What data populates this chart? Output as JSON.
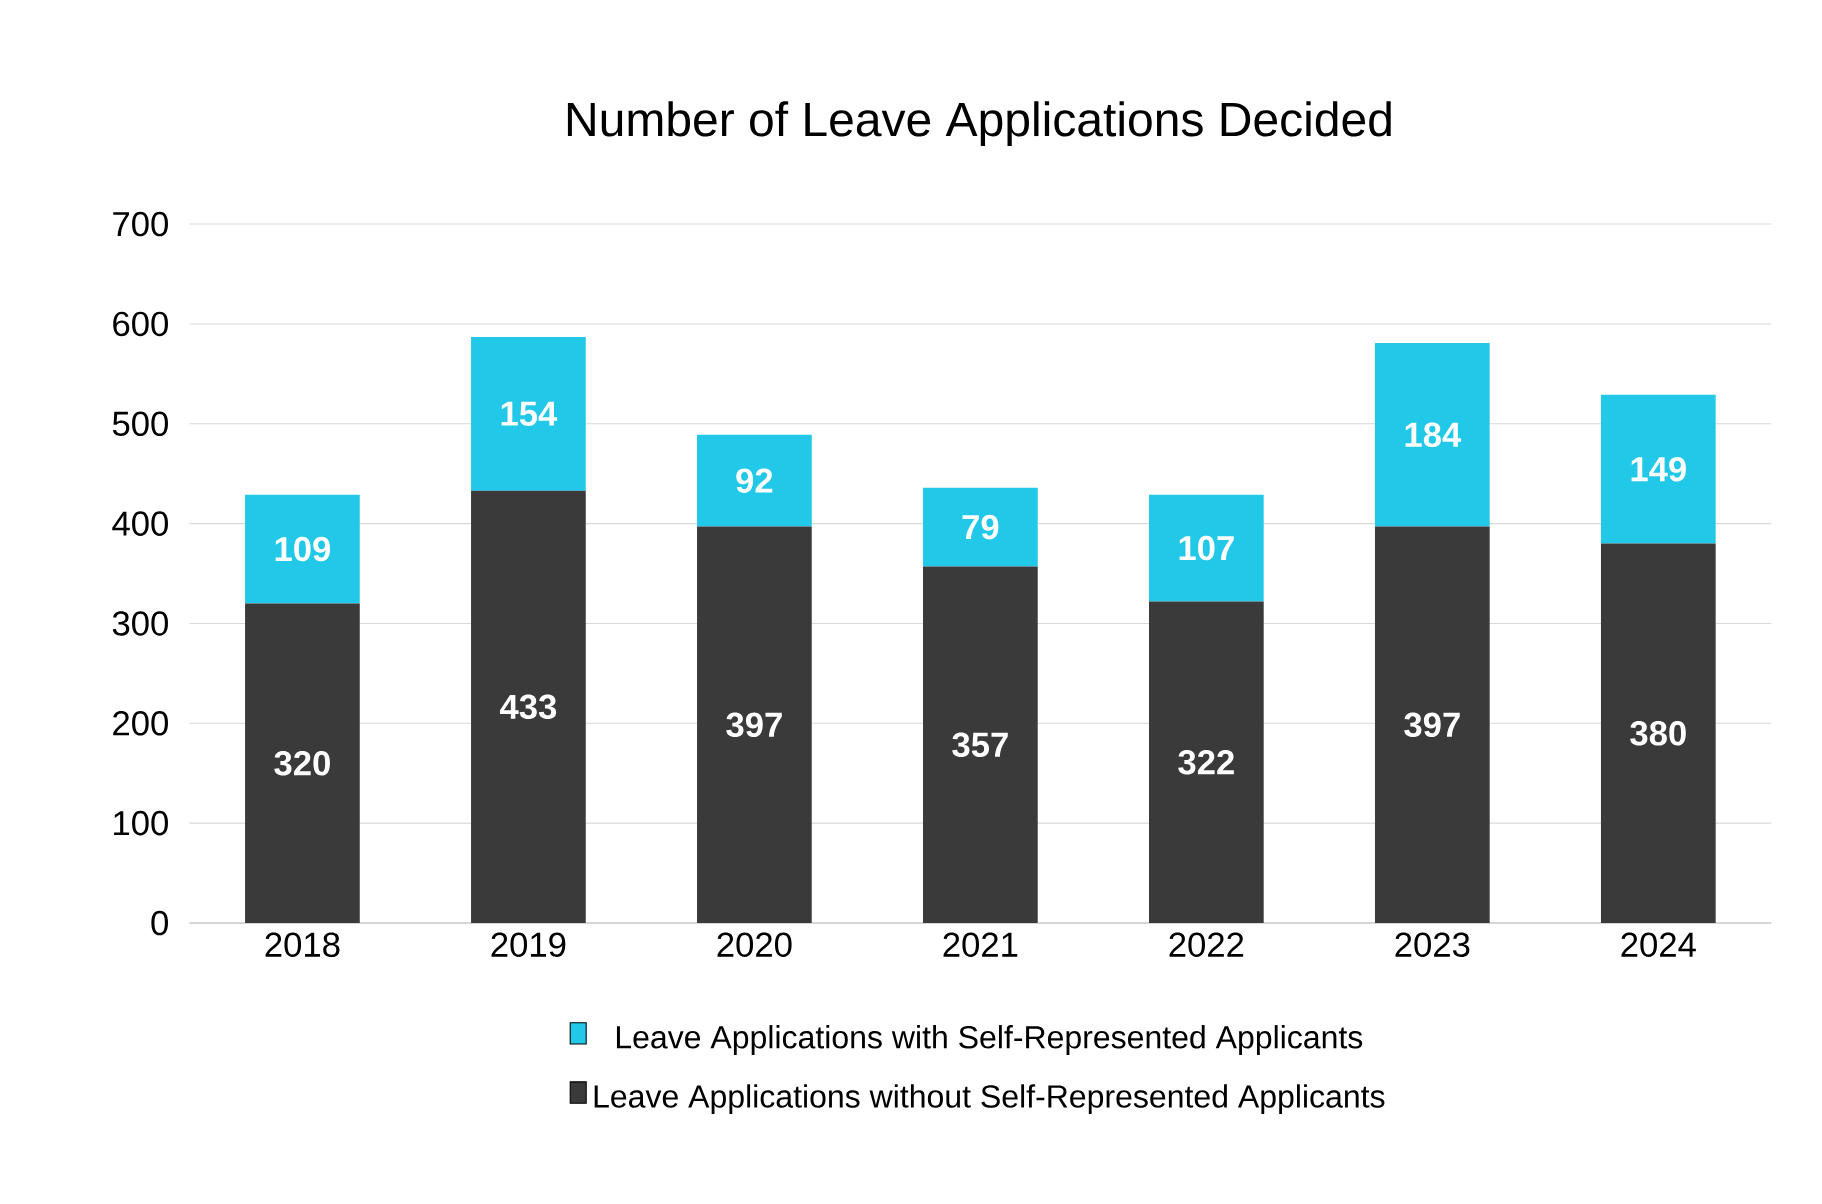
{
  "chart_data": {
    "type": "bar",
    "stacked": true,
    "title": "Number of Leave Applications Decided",
    "categories": [
      "2018",
      "2019",
      "2020",
      "2021",
      "2022",
      "2023",
      "2024"
    ],
    "series": [
      {
        "name": "Leave Applications without Self-Represented Applicants",
        "color": "#3a3a3a",
        "values": [
          320,
          433,
          397,
          357,
          322,
          397,
          380
        ]
      },
      {
        "name": "Leave Applications with Self-Represented Applicants",
        "color": "#22c8e8",
        "values": [
          109,
          154,
          92,
          79,
          107,
          184,
          149
        ]
      }
    ],
    "ylim": [
      0,
      700
    ],
    "yticks": [
      0,
      100,
      200,
      300,
      400,
      500,
      600,
      700
    ],
    "grid": "y",
    "legend": "bottom",
    "data_labels": true
  }
}
